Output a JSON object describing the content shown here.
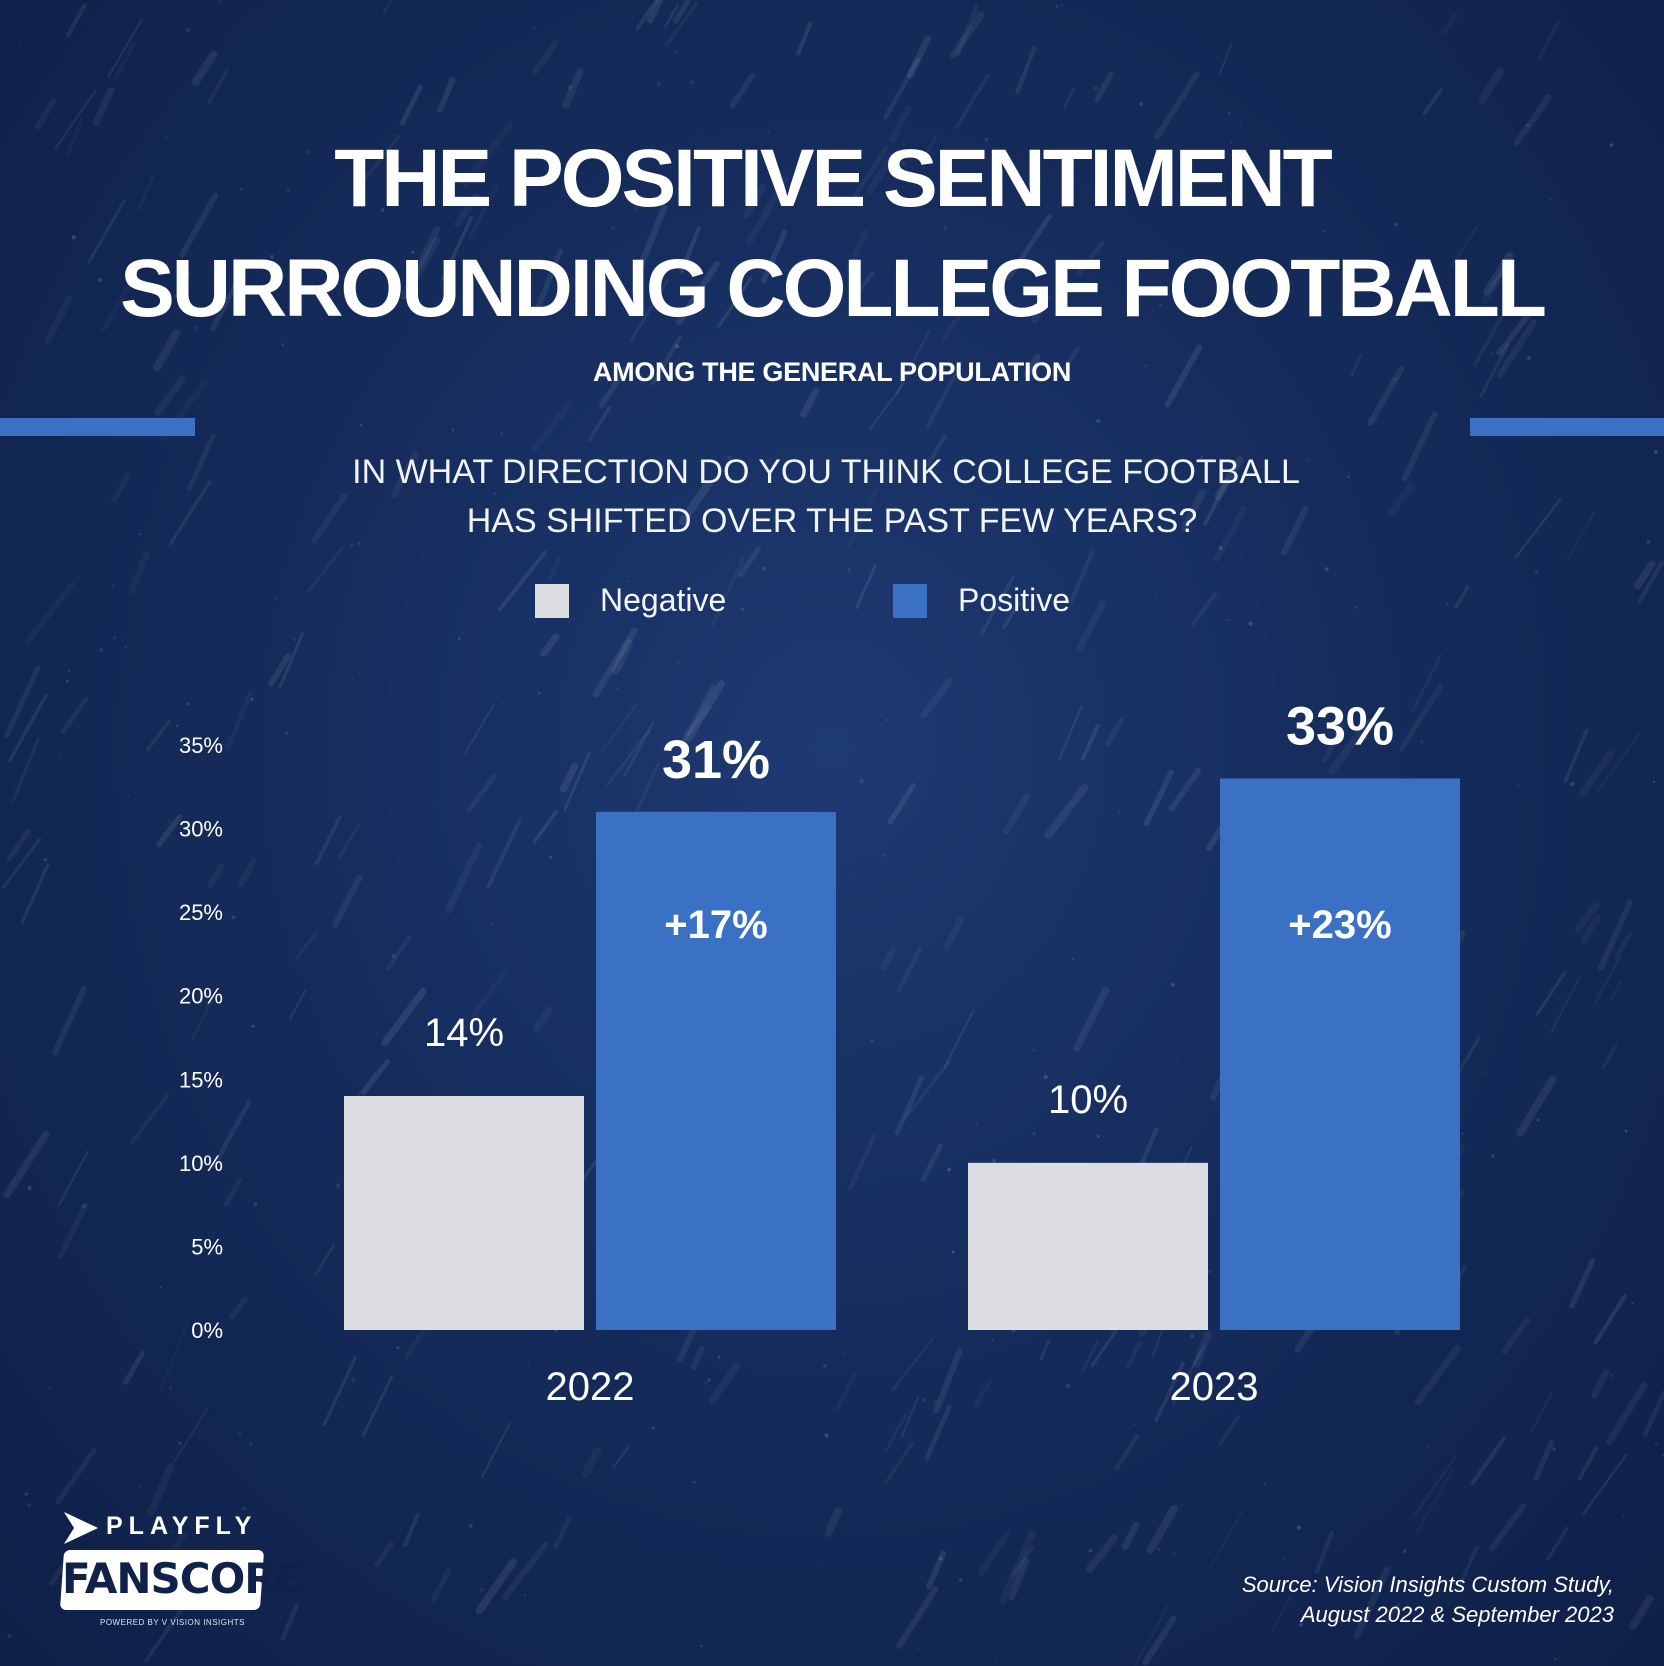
{
  "header": {
    "title_line_1": "THE POSITIVE SENTIMENT",
    "title_line_2": "SURROUNDING COLLEGE FOOTBALL",
    "subtitle": "AMONG THE GENERAL POPULATION",
    "question_line_1": "IN WHAT DIRECTION DO YOU THINK COLLEGE FOOTBALL",
    "question_line_2": "HAS SHIFTED OVER THE PAST FEW YEARS?"
  },
  "legend": {
    "negative_label": "Negative",
    "positive_label": "Positive"
  },
  "colors": {
    "background": "#152c5c",
    "negative": "#dcdde1",
    "positive": "#3a71c4",
    "accent_rule": "#3a71c4",
    "text": "#ffffff"
  },
  "chart_data": {
    "type": "bar",
    "categories": [
      "2022",
      "2023"
    ],
    "series": [
      {
        "name": "Negative",
        "values": [
          14,
          10
        ],
        "labels": [
          "14%",
          "10%"
        ]
      },
      {
        "name": "Positive",
        "values": [
          31,
          33
        ],
        "labels": [
          "31%",
          "33%"
        ]
      }
    ],
    "net_change_labels": [
      "+17%",
      "+23%"
    ],
    "ylim": [
      0,
      35
    ],
    "yticks": [
      0,
      5,
      10,
      15,
      20,
      25,
      30,
      35
    ],
    "ytick_labels": [
      "0%",
      "5%",
      "10%",
      "15%",
      "20%",
      "25%",
      "30%",
      "35%"
    ],
    "grid": false,
    "legend_position": "top-center"
  },
  "branding": {
    "logo_top": "PLAYFLY",
    "logo_main": "FANSCORE",
    "logo_powered": "POWERED BY V VISION INSIGHTS"
  },
  "source": {
    "line_1": "Source: Vision Insights Custom Study,",
    "line_2": "August 2022 & September 2023"
  }
}
